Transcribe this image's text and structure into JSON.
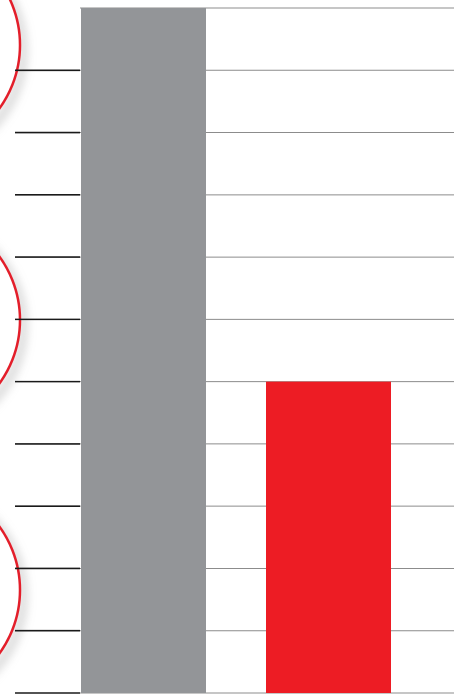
{
  "chart_data": {
    "type": "bar",
    "categories": [
      "",
      ""
    ],
    "values": [
      11,
      5
    ],
    "ylim": [
      0,
      11
    ],
    "grid": true,
    "colors": [
      "#939598",
      "#ed1c24"
    ]
  },
  "decoration": {
    "circle_color": "#e31e2a",
    "circle_count": 3
  }
}
